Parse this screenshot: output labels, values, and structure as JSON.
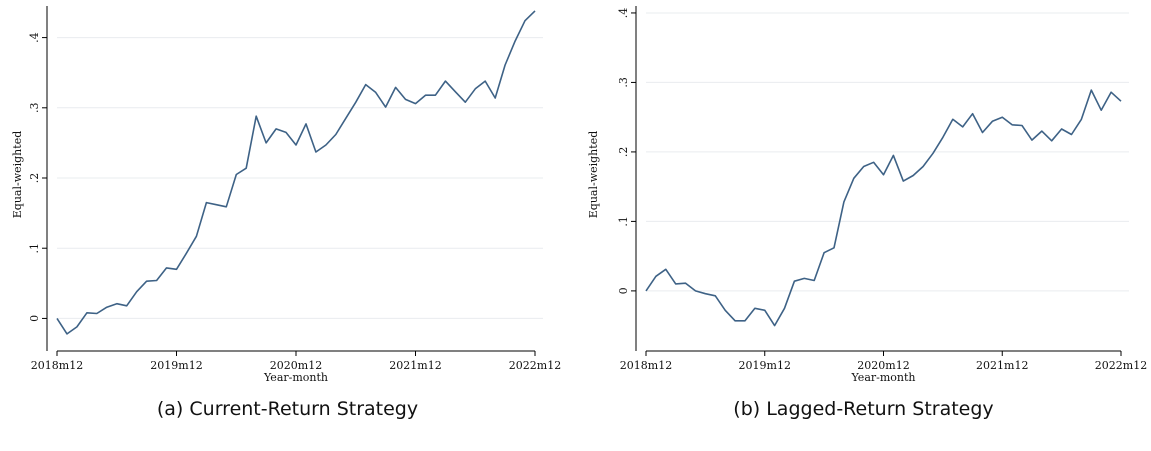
{
  "colors": {
    "line": "#3e6286",
    "grid": "#e9ecef",
    "axis": "#000000"
  },
  "chart_data": [
    {
      "type": "line",
      "caption": "(a)  Current-Return Strategy",
      "xlabel": "Year-month",
      "ylabel": "Equal-weighted",
      "grid": true,
      "x_start": "2018m12",
      "x_ticks": [
        "2018m12",
        "2019m12",
        "2020m12",
        "2021m12",
        "2022m12"
      ],
      "y_ticks": [
        0,
        0.1,
        0.2,
        0.3,
        0.4
      ],
      "y_tick_labels": [
        "0",
        ".1",
        ".2",
        ".3",
        ".4"
      ],
      "xlim": [
        "2018m12",
        "2022m12"
      ],
      "ylim": [
        -0.035,
        0.445
      ],
      "series": [
        {
          "values": [
            0.0,
            -0.022,
            -0.012,
            0.008,
            0.007,
            0.016,
            0.021,
            0.018,
            0.038,
            0.053,
            0.054,
            0.072,
            0.07,
            0.093,
            0.117,
            0.165,
            0.162,
            0.159,
            0.205,
            0.214,
            0.288,
            0.25,
            0.27,
            0.265,
            0.247,
            0.277,
            0.237,
            0.247,
            0.262,
            0.285,
            0.308,
            0.333,
            0.322,
            0.301,
            0.329,
            0.312,
            0.306,
            0.318,
            0.318,
            0.338,
            0.323,
            0.308,
            0.327,
            0.338,
            0.314,
            0.361,
            0.395,
            0.424,
            0.438
          ]
        }
      ]
    },
    {
      "type": "line",
      "caption": "(b)  Lagged-Return Strategy",
      "xlabel": "Year-month",
      "ylabel": "Equal-weighted",
      "grid": true,
      "x_start": "2018m12",
      "x_ticks": [
        "2018m12",
        "2019m12",
        "2020m12",
        "2021m12",
        "2022m12"
      ],
      "y_ticks": [
        0,
        0.1,
        0.2,
        0.3,
        0.4
      ],
      "y_tick_labels": [
        "0",
        ".1",
        ".2",
        ".3",
        ".4"
      ],
      "xlim": [
        "2018m12",
        "2022m12"
      ],
      "ylim": [
        -0.075,
        0.41
      ],
      "series": [
        {
          "values": [
            0.0,
            0.021,
            0.031,
            0.01,
            0.011,
            0.0,
            -0.004,
            -0.007,
            -0.028,
            -0.043,
            -0.043,
            -0.025,
            -0.028,
            -0.05,
            -0.025,
            0.014,
            0.018,
            0.015,
            0.055,
            0.062,
            0.128,
            0.162,
            0.179,
            0.185,
            0.167,
            0.195,
            0.158,
            0.166,
            0.179,
            0.198,
            0.221,
            0.247,
            0.236,
            0.255,
            0.228,
            0.244,
            0.25,
            0.239,
            0.238,
            0.217,
            0.23,
            0.216,
            0.233,
            0.225,
            0.247,
            0.289,
            0.26,
            0.286,
            0.273
          ]
        }
      ]
    }
  ]
}
